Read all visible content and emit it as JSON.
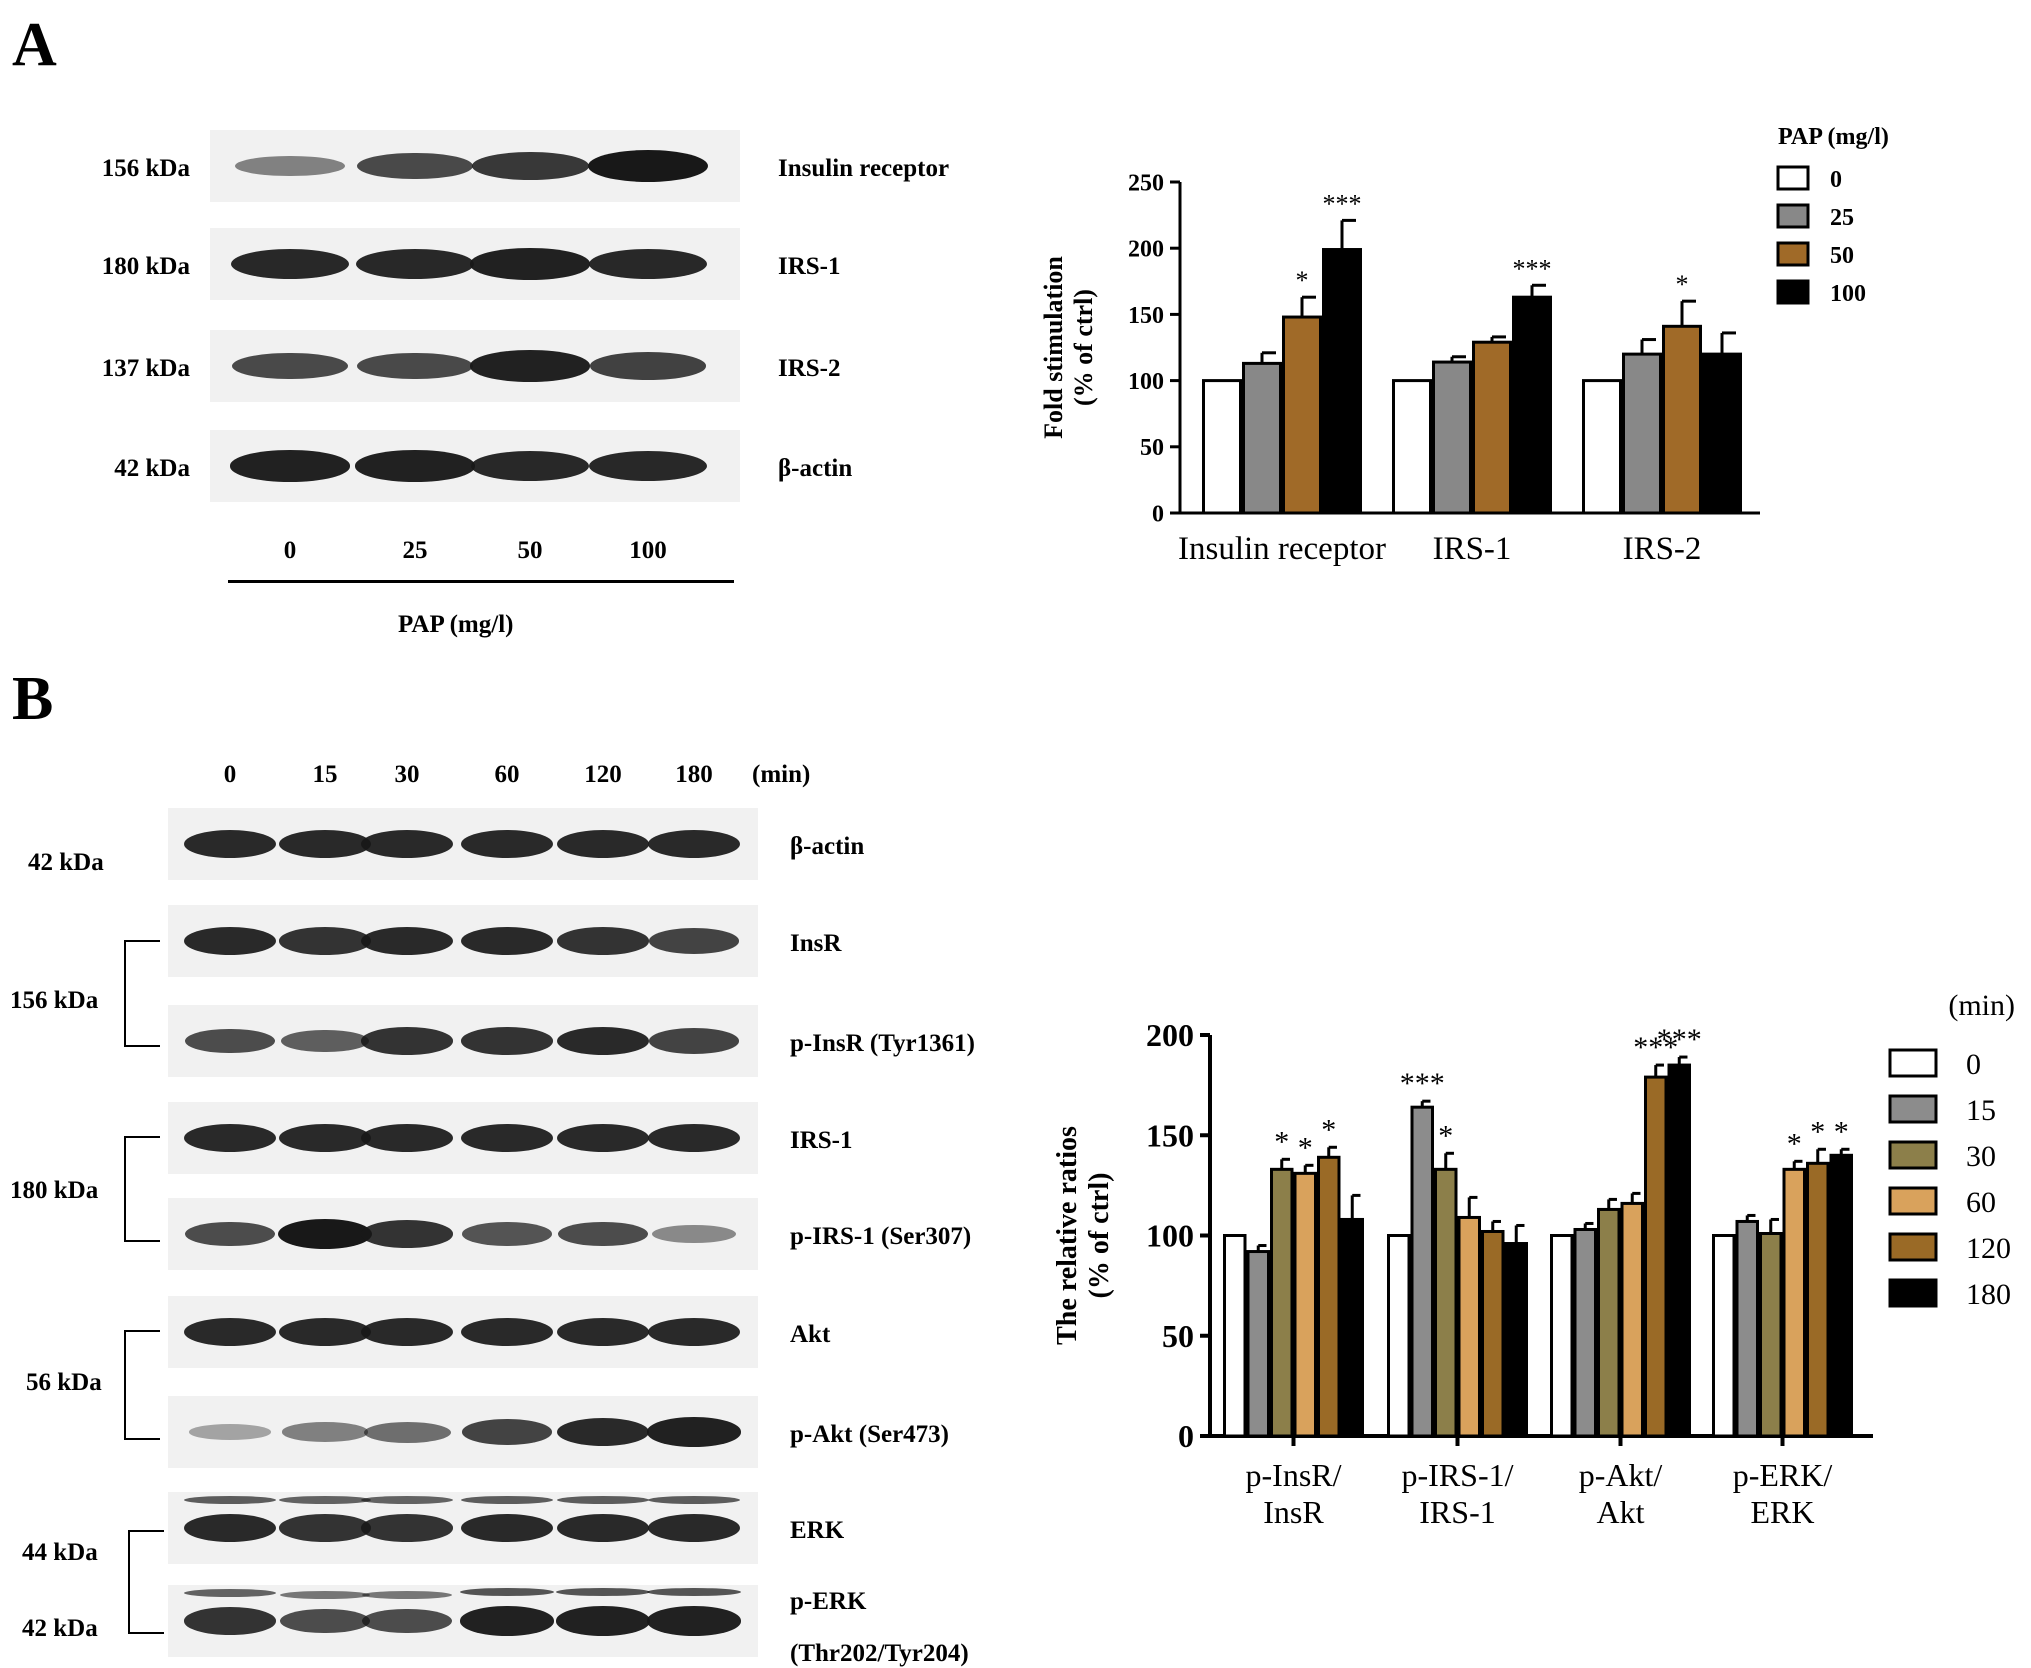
{
  "panel_a": {
    "letter": "A",
    "blot": {
      "rows": [
        {
          "kda": "156 kDa",
          "protein": "Insulin receptor",
          "intensity": [
            0.35,
            0.7,
            0.8,
            1.0
          ]
        },
        {
          "kda": "180 kDa",
          "protein": "IRS-1",
          "intensity": [
            0.9,
            0.9,
            0.95,
            0.9
          ]
        },
        {
          "kda": "137 kDa",
          "protein": "IRS-2",
          "intensity": [
            0.7,
            0.7,
            0.95,
            0.75
          ]
        },
        {
          "kda": "42 kDa",
          "protein": "β-actin",
          "intensity": [
            0.95,
            0.95,
            0.9,
            0.9
          ]
        }
      ],
      "lanes": [
        "0",
        "25",
        "50",
        "100"
      ],
      "axis_title": "PAP  (mg/l)"
    }
  },
  "panel_b": {
    "letter": "B",
    "blot": {
      "lanes": [
        "0",
        "15",
        "30",
        "60",
        "120",
        "180"
      ],
      "lane_unit": "(min)",
      "rows": [
        {
          "protein": "β-actin",
          "intensity": [
            0.9,
            0.9,
            0.9,
            0.9,
            0.9,
            0.9
          ]
        },
        {
          "protein": "InsR",
          "intensity": [
            0.9,
            0.85,
            0.9,
            0.9,
            0.85,
            0.75
          ]
        },
        {
          "protein": "p-InsR (Tyr1361)",
          "intensity": [
            0.7,
            0.6,
            0.85,
            0.85,
            0.9,
            0.75
          ]
        },
        {
          "protein": "IRS-1",
          "intensity": [
            0.9,
            0.9,
            0.9,
            0.9,
            0.9,
            0.9
          ]
        },
        {
          "protein": "p-IRS-1 (Ser307)",
          "intensity": [
            0.7,
            1.0,
            0.85,
            0.65,
            0.7,
            0.35
          ]
        },
        {
          "protein": "Akt",
          "intensity": [
            0.9,
            0.9,
            0.9,
            0.9,
            0.9,
            0.9
          ]
        },
        {
          "protein": "p-Akt (Ser473)",
          "intensity": [
            0.2,
            0.4,
            0.5,
            0.75,
            0.9,
            0.95
          ]
        },
        {
          "protein": "ERK",
          "intensity": [
            0.9,
            0.85,
            0.85,
            0.9,
            0.9,
            0.9
          ]
        },
        {
          "protein": "p-ERK",
          "protein2": "(Thr202/Tyr204)",
          "intensity": [
            0.85,
            0.7,
            0.7,
            0.95,
            0.95,
            0.95
          ]
        }
      ],
      "kda_labels": [
        "42 kDa",
        "156 kDa",
        "180 kDa",
        "56 kDa",
        "44 kDa",
        "42 kDa"
      ]
    }
  },
  "chart_data": [
    {
      "type": "bar",
      "categories": [
        "Insulin receptor",
        "IRS-1",
        "IRS-2"
      ],
      "ylabel_line1": "Fold stimulation",
      "ylabel_line2": "(% of ctrl)",
      "ylim": [
        0,
        250
      ],
      "yticks": [
        0,
        50,
        100,
        150,
        200,
        250
      ],
      "legend_title": "PAP  (mg/l)",
      "legend_position": "top-right",
      "series": [
        {
          "name": "0",
          "color": "#ffffff",
          "values": [
            100,
            100,
            100
          ],
          "errors": [
            0,
            0,
            0
          ],
          "sig": [
            "",
            "",
            ""
          ]
        },
        {
          "name": "25",
          "color": "#888888",
          "values": [
            113,
            114,
            120
          ],
          "errors": [
            8,
            4,
            11
          ],
          "sig": [
            "",
            "",
            ""
          ]
        },
        {
          "name": "50",
          "color": "#a06a28",
          "values": [
            148,
            129,
            141
          ],
          "errors": [
            15,
            4,
            19
          ],
          "sig": [
            "*",
            "",
            "*"
          ]
        },
        {
          "name": "100",
          "color": "#000000",
          "values": [
            199,
            163,
            120
          ],
          "errors": [
            22,
            9,
            16
          ],
          "sig": [
            "***",
            "***",
            ""
          ]
        }
      ]
    },
    {
      "type": "bar",
      "categories": [
        [
          "p-InsR/",
          "InsR"
        ],
        [
          "p-IRS-1/",
          "IRS-1"
        ],
        [
          "p-Akt/",
          "Akt"
        ],
        [
          "p-ERK/",
          "ERK"
        ]
      ],
      "ylabel_line1": "The relative ratios",
      "ylabel_line2": "(% of ctrl)",
      "ylim": [
        0,
        200
      ],
      "yticks": [
        0,
        50,
        100,
        150,
        200
      ],
      "legend_title": "(min)",
      "legend_position": "right",
      "series": [
        {
          "name": "0",
          "color": "#ffffff",
          "values": [
            100,
            100,
            100,
            100
          ],
          "errors": [
            0,
            0,
            0,
            0
          ],
          "sig": [
            "",
            "",
            "",
            ""
          ]
        },
        {
          "name": "15",
          "color": "#8c8c8c",
          "values": [
            92,
            164,
            103,
            107
          ],
          "errors": [
            3,
            3,
            3,
            3
          ],
          "sig": [
            "",
            "***",
            "",
            ""
          ]
        },
        {
          "name": "30",
          "color": "#8c7f4a",
          "values": [
            133,
            133,
            113,
            101
          ],
          "errors": [
            5,
            8,
            5,
            7
          ],
          "sig": [
            "*",
            "*",
            "",
            ""
          ]
        },
        {
          "name": "60",
          "color": "#d9a25c",
          "values": [
            131,
            109,
            116,
            133
          ],
          "errors": [
            4,
            10,
            5,
            4
          ],
          "sig": [
            "*",
            "",
            "",
            "*"
          ]
        },
        {
          "name": "120",
          "color": "#9a6a26",
          "values": [
            139,
            102,
            179,
            136
          ],
          "errors": [
            5,
            5,
            6,
            7
          ],
          "sig": [
            "*",
            "",
            "***",
            "*"
          ]
        },
        {
          "name": "180",
          "color": "#000000",
          "values": [
            108,
            96,
            185,
            140
          ],
          "errors": [
            12,
            9,
            4,
            3
          ],
          "sig": [
            "",
            "",
            "***",
            "*"
          ]
        }
      ]
    }
  ]
}
